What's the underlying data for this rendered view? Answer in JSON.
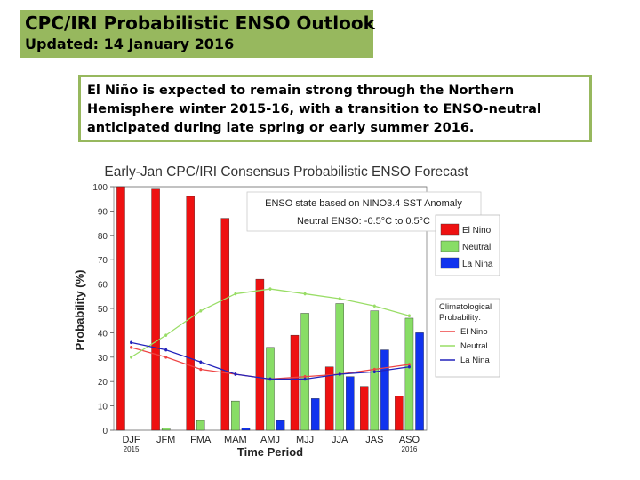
{
  "header": {
    "title": "CPC/IRI Probabilistic ENSO Outlook",
    "updated": "Updated: 14 January 2016"
  },
  "summary": {
    "text": "El Niño is expected to remain strong through the Northern Hemisphere winter 2015-16, with a transition to ENSO-neutral anticipated during late spring or early summer 2016."
  },
  "chart_data": {
    "type": "bar",
    "title": "Early-Jan CPC/IRI Consensus Probabilistic ENSO Forecast",
    "annotation": {
      "line1": "ENSO state based on NINO3.4 SST Anomaly",
      "line2": "Neutral ENSO: -0.5°C to 0.5°C"
    },
    "xlabel": "Time Period",
    "ylabel": "Probability (%)",
    "ylim": [
      0,
      100
    ],
    "yticks": [
      0,
      10,
      20,
      30,
      40,
      50,
      60,
      70,
      80,
      90,
      100
    ],
    "categories": [
      "DJF",
      "JFM",
      "FMA",
      "MAM",
      "AMJ",
      "MJJ",
      "JJA",
      "JAS",
      "ASO"
    ],
    "sublabels": {
      "DJF": "2015",
      "ASO": "2016"
    },
    "series": [
      {
        "name": "El Nino",
        "color": "#ee1111",
        "values": [
          100,
          99,
          96,
          87,
          62,
          39,
          26,
          18,
          14
        ]
      },
      {
        "name": "Neutral",
        "color": "#88dd66",
        "values": [
          0,
          1,
          4,
          12,
          34,
          48,
          52,
          49,
          46
        ]
      },
      {
        "name": "La Nina",
        "color": "#1133ee",
        "values": [
          0,
          0,
          0,
          1,
          4,
          13,
          22,
          33,
          40
        ]
      }
    ],
    "climatology": {
      "label": "Climatological Probability:",
      "series": [
        {
          "name": "El Nino",
          "color": "#ee4444",
          "values": [
            34,
            30,
            25,
            23,
            21,
            22,
            23,
            25,
            27
          ]
        },
        {
          "name": "Neutral",
          "color": "#99dd66",
          "values": [
            30,
            39,
            49,
            56,
            58,
            56,
            54,
            51,
            47
          ]
        },
        {
          "name": "La Nina",
          "color": "#2222bb",
          "values": [
            36,
            33,
            28,
            23,
            21,
            21,
            23,
            24,
            26
          ]
        }
      ]
    }
  }
}
